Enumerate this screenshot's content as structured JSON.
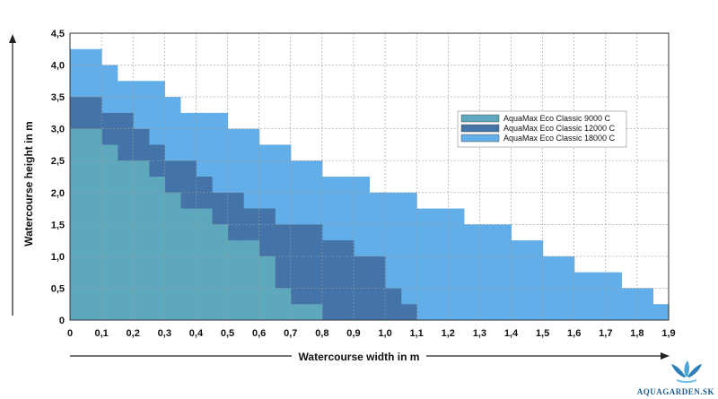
{
  "chart_data": {
    "type": "area",
    "xlabel": "Watercourse width in m",
    "ylabel": "Watercourse height in m",
    "xlim": [
      0,
      1.9
    ],
    "ylim": [
      0,
      4.5
    ],
    "x_ticks": [
      "0",
      "0,1",
      "0,2",
      "0,3",
      "0,4",
      "0,5",
      "0,6",
      "0,7",
      "0,8",
      "0,9",
      "1,0",
      "1,1",
      "1,2",
      "1,3",
      "1,4",
      "1,5",
      "1,6",
      "1,7",
      "1,8",
      "1,9"
    ],
    "y_ticks": [
      "0",
      "0,5",
      "1,0",
      "1,5",
      "2,0",
      "2,5",
      "3,0",
      "3,5",
      "4,0",
      "4,5"
    ],
    "grid": true,
    "legend_position": "right",
    "series": [
      {
        "name": "AquaMax Eco Classic 18000 C",
        "color": "#62aee8",
        "steps": [
          {
            "x0": 0,
            "x1": 0.1,
            "h": 4.25
          },
          {
            "x0": 0.1,
            "x1": 0.15,
            "h": 4.0
          },
          {
            "x0": 0.15,
            "x1": 0.3,
            "h": 3.75
          },
          {
            "x0": 0.3,
            "x1": 0.35,
            "h": 3.5
          },
          {
            "x0": 0.35,
            "x1": 0.5,
            "h": 3.25
          },
          {
            "x0": 0.5,
            "x1": 0.6,
            "h": 3.0
          },
          {
            "x0": 0.6,
            "x1": 0.7,
            "h": 2.75
          },
          {
            "x0": 0.7,
            "x1": 0.8,
            "h": 2.5
          },
          {
            "x0": 0.8,
            "x1": 0.95,
            "h": 2.25
          },
          {
            "x0": 0.95,
            "x1": 1.1,
            "h": 2.0
          },
          {
            "x0": 1.1,
            "x1": 1.25,
            "h": 1.75
          },
          {
            "x0": 1.25,
            "x1": 1.4,
            "h": 1.5
          },
          {
            "x0": 1.4,
            "x1": 1.5,
            "h": 1.25
          },
          {
            "x0": 1.5,
            "x1": 1.6,
            "h": 1.0
          },
          {
            "x0": 1.6,
            "x1": 1.75,
            "h": 0.75
          },
          {
            "x0": 1.75,
            "x1": 1.85,
            "h": 0.5
          },
          {
            "x0": 1.85,
            "x1": 1.9,
            "h": 0.25
          }
        ]
      },
      {
        "name": "AquaMax Eco Classic 12000 C",
        "color": "#4473a8",
        "steps": [
          {
            "x0": 0,
            "x1": 0.1,
            "h": 3.5
          },
          {
            "x0": 0.1,
            "x1": 0.2,
            "h": 3.25
          },
          {
            "x0": 0.2,
            "x1": 0.25,
            "h": 3.0
          },
          {
            "x0": 0.25,
            "x1": 0.3,
            "h": 2.75
          },
          {
            "x0": 0.3,
            "x1": 0.4,
            "h": 2.5
          },
          {
            "x0": 0.4,
            "x1": 0.45,
            "h": 2.25
          },
          {
            "x0": 0.45,
            "x1": 0.55,
            "h": 2.0
          },
          {
            "x0": 0.55,
            "x1": 0.65,
            "h": 1.75
          },
          {
            "x0": 0.65,
            "x1": 0.8,
            "h": 1.5
          },
          {
            "x0": 0.8,
            "x1": 0.9,
            "h": 1.25
          },
          {
            "x0": 0.9,
            "x1": 1.0,
            "h": 1.0
          },
          {
            "x0": 1.0,
            "x1": 1.05,
            "h": 0.5
          },
          {
            "x0": 1.05,
            "x1": 1.1,
            "h": 0.25
          }
        ]
      },
      {
        "name": "AquaMax Eco Classic 9000 C",
        "color": "#5ea8bd",
        "steps": [
          {
            "x0": 0,
            "x1": 0.1,
            "h": 3.0
          },
          {
            "x0": 0.1,
            "x1": 0.15,
            "h": 2.75
          },
          {
            "x0": 0.15,
            "x1": 0.25,
            "h": 2.5
          },
          {
            "x0": 0.25,
            "x1": 0.3,
            "h": 2.25
          },
          {
            "x0": 0.3,
            "x1": 0.35,
            "h": 2.0
          },
          {
            "x0": 0.35,
            "x1": 0.45,
            "h": 1.75
          },
          {
            "x0": 0.45,
            "x1": 0.5,
            "h": 1.5
          },
          {
            "x0": 0.5,
            "x1": 0.6,
            "h": 1.25
          },
          {
            "x0": 0.6,
            "x1": 0.65,
            "h": 1.0
          },
          {
            "x0": 0.65,
            "x1": 0.7,
            "h": 0.5
          },
          {
            "x0": 0.7,
            "x1": 0.8,
            "h": 0.25
          }
        ]
      }
    ],
    "legend": [
      "AquaMax Eco Classic 9000 C",
      "AquaMax Eco Classic 12000 C",
      "AquaMax Eco Classic 18000 C"
    ]
  },
  "logo": {
    "text": "AQUAGARDEN.SK",
    "icon": "lotus-logo-icon",
    "color": "#1f5c8f"
  }
}
